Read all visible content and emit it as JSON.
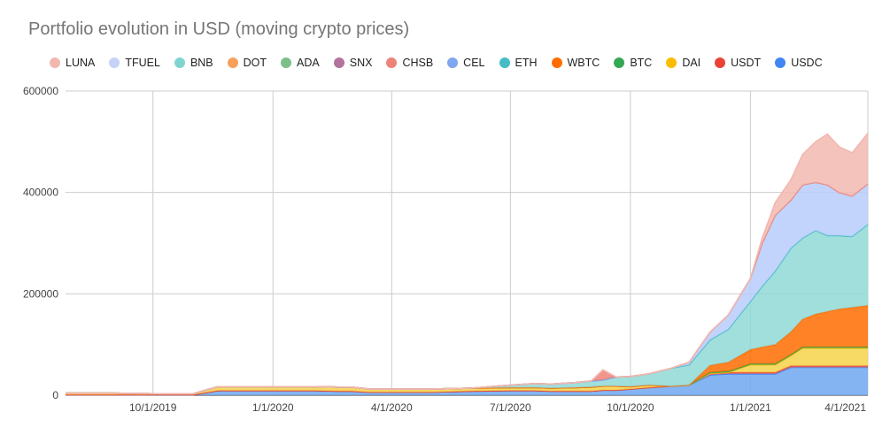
{
  "chart_data": {
    "type": "area",
    "stacked": true,
    "title": "Portfolio evolution in USD (moving crypto prices)",
    "xlabel": "",
    "ylabel": "",
    "ylim": [
      0,
      600000
    ],
    "y_ticks": [
      "600000",
      "400000",
      "200000",
      "0"
    ],
    "x_ticks": [
      "10/1/2019",
      "1/1/2020",
      "4/1/2020",
      "7/1/2020",
      "10/1/2020",
      "1/1/2021",
      "4/1/2021"
    ],
    "x_range": [
      "2019-07-26",
      "2021-04-01"
    ],
    "grid": true,
    "legend_position": "top",
    "x": [
      "2019-07-26",
      "2019-09-01",
      "2019-10-01",
      "2019-11-01",
      "2019-11-20",
      "2019-12-01",
      "2020-01-01",
      "2020-02-01",
      "2020-02-20",
      "2020-03-01",
      "2020-03-15",
      "2020-04-01",
      "2020-05-01",
      "2020-06-01",
      "2020-07-01",
      "2020-07-20",
      "2020-08-01",
      "2020-08-20",
      "2020-09-01",
      "2020-09-10",
      "2020-09-20",
      "2020-10-01",
      "2020-10-15",
      "2020-11-01",
      "2020-11-15",
      "2020-12-01",
      "2020-12-15",
      "2021-01-01",
      "2021-01-10",
      "2021-01-20",
      "2021-02-01",
      "2021-02-10",
      "2021-02-20",
      "2021-03-01",
      "2021-03-10",
      "2021-03-20",
      "2021-04-01"
    ],
    "series": [
      {
        "name": "USDC",
        "color": "#6fa8f0",
        "values": [
          1000,
          1000,
          1000,
          1000,
          9000,
          9000,
          9000,
          9000,
          8000,
          8000,
          6000,
          6000,
          6000,
          8000,
          9000,
          9000,
          8000,
          8000,
          8000,
          10000,
          10000,
          12000,
          15000,
          18000,
          20000,
          40000,
          42000,
          42000,
          42000,
          42000,
          55000,
          55000,
          55000,
          55000,
          55000,
          55000,
          55000
        ]
      },
      {
        "name": "USDT",
        "color": "#e06666",
        "values": [
          0,
          0,
          0,
          0,
          0,
          0,
          0,
          0,
          0,
          0,
          0,
          0,
          0,
          0,
          0,
          0,
          0,
          0,
          0,
          0,
          0,
          0,
          0,
          0,
          0,
          3000,
          3000,
          3000,
          3000,
          3000,
          3000,
          3000,
          3000,
          3000,
          3000,
          3000,
          3000
        ]
      },
      {
        "name": "DAI",
        "color": "#f6d24a",
        "values": [
          3000,
          3000,
          2000,
          2000,
          8000,
          8000,
          8000,
          8000,
          8000,
          8000,
          6000,
          6000,
          6000,
          6000,
          6000,
          6000,
          6000,
          7000,
          8000,
          8000,
          8000,
          5000,
          5000,
          0,
          0,
          0,
          0,
          15000,
          15000,
          15000,
          20000,
          35000,
          35000,
          35000,
          35000,
          35000,
          35000
        ]
      },
      {
        "name": "BTC",
        "color": "#4caf50",
        "values": [
          0,
          0,
          0,
          0,
          0,
          0,
          0,
          0,
          0,
          0,
          0,
          0,
          0,
          0,
          0,
          0,
          0,
          0,
          0,
          0,
          0,
          0,
          0,
          0,
          0,
          2000,
          2000,
          2000,
          2000,
          2000,
          2000,
          2000,
          2000,
          2000,
          2000,
          2000,
          2000
        ]
      },
      {
        "name": "WBTC",
        "color": "#ff6d00",
        "values": [
          0,
          0,
          0,
          0,
          0,
          0,
          0,
          0,
          0,
          0,
          0,
          0,
          0,
          0,
          0,
          0,
          0,
          0,
          0,
          0,
          0,
          0,
          0,
          0,
          0,
          14000,
          18000,
          28000,
          33000,
          38000,
          45000,
          55000,
          65000,
          70000,
          75000,
          78000,
          82000
        ]
      },
      {
        "name": "ETH",
        "color": "#8fd9d6",
        "values": [
          0,
          0,
          0,
          0,
          0,
          0,
          0,
          0,
          0,
          0,
          0,
          0,
          0,
          0,
          5000,
          8000,
          8000,
          10000,
          12000,
          12000,
          18000,
          20000,
          22000,
          35000,
          40000,
          50000,
          65000,
          95000,
          120000,
          145000,
          165000,
          160000,
          165000,
          150000,
          145000,
          140000,
          160000
        ]
      },
      {
        "name": "CEL",
        "color": "#b7cdfb",
        "values": [
          0,
          0,
          0,
          0,
          0,
          0,
          0,
          0,
          0,
          0,
          0,
          0,
          0,
          0,
          0,
          0,
          0,
          0,
          0,
          0,
          0,
          0,
          0,
          0,
          5000,
          15000,
          28000,
          45000,
          85000,
          110000,
          95000,
          105000,
          95000,
          100000,
          85000,
          80000,
          80000
        ]
      },
      {
        "name": "CHSB",
        "color": "#ee8379",
        "values": [
          0,
          0,
          0,
          0,
          0,
          0,
          0,
          0,
          0,
          0,
          0,
          0,
          0,
          0,
          0,
          0,
          0,
          0,
          0,
          20000,
          0,
          0,
          0,
          0,
          0,
          0,
          0,
          0,
          0,
          0,
          0,
          0,
          0,
          0,
          0,
          0,
          0
        ]
      },
      {
        "name": "SNX",
        "color": "#b3739c",
        "values": [
          0,
          0,
          0,
          0,
          0,
          0,
          0,
          0,
          0,
          0,
          0,
          0,
          0,
          0,
          0,
          0,
          0,
          0,
          0,
          0,
          0,
          0,
          0,
          0,
          0,
          0,
          0,
          0,
          0,
          0,
          0,
          0,
          0,
          0,
          0,
          0,
          0
        ]
      },
      {
        "name": "ADA",
        "color": "#7dbf88",
        "values": [
          0,
          0,
          0,
          0,
          0,
          0,
          0,
          0,
          0,
          0,
          0,
          0,
          0,
          0,
          0,
          0,
          0,
          0,
          0,
          0,
          0,
          0,
          0,
          0,
          0,
          0,
          0,
          0,
          0,
          0,
          0,
          0,
          0,
          0,
          0,
          0,
          0
        ]
      },
      {
        "name": "DOT",
        "color": "#f7a05c",
        "values": [
          0,
          0,
          0,
          0,
          0,
          0,
          0,
          0,
          0,
          0,
          0,
          0,
          0,
          0,
          0,
          0,
          0,
          0,
          0,
          0,
          0,
          0,
          0,
          0,
          0,
          0,
          0,
          0,
          0,
          0,
          0,
          0,
          0,
          0,
          0,
          0,
          0
        ]
      },
      {
        "name": "BNB",
        "color": "#80d4cf",
        "values": [
          0,
          0,
          0,
          0,
          0,
          0,
          0,
          0,
          0,
          0,
          0,
          0,
          0,
          0,
          0,
          0,
          0,
          0,
          0,
          0,
          0,
          0,
          0,
          0,
          0,
          0,
          0,
          0,
          0,
          0,
          0,
          0,
          0,
          0,
          0,
          0,
          0
        ]
      },
      {
        "name": "TFUEL",
        "color": "#c6d3f7",
        "values": [
          0,
          0,
          0,
          0,
          0,
          0,
          0,
          0,
          0,
          0,
          0,
          0,
          0,
          0,
          0,
          0,
          0,
          0,
          0,
          0,
          0,
          0,
          0,
          0,
          0,
          0,
          0,
          0,
          0,
          0,
          0,
          0,
          0,
          0,
          0,
          0,
          0
        ]
      },
      {
        "name": "LUNA",
        "color": "#f2b8b0",
        "values": [
          0,
          0,
          0,
          0,
          0,
          0,
          0,
          0,
          0,
          0,
          0,
          0,
          0,
          0,
          0,
          0,
          0,
          0,
          0,
          0,
          0,
          0,
          0,
          0,
          0,
          0,
          0,
          0,
          10000,
          25000,
          40000,
          60000,
          80000,
          100000,
          90000,
          85000,
          100000
        ]
      }
    ],
    "legend": [
      {
        "name": "LUNA",
        "color": "#f2b8b0"
      },
      {
        "name": "TFUEL",
        "color": "#c6d3f7"
      },
      {
        "name": "BNB",
        "color": "#80d4cf"
      },
      {
        "name": "DOT",
        "color": "#f7a05c"
      },
      {
        "name": "ADA",
        "color": "#7dbf88"
      },
      {
        "name": "SNX",
        "color": "#b3739c"
      },
      {
        "name": "CHSB",
        "color": "#ee8379"
      },
      {
        "name": "CEL",
        "color": "#7fa6ee"
      },
      {
        "name": "ETH",
        "color": "#46bdc6"
      },
      {
        "name": "WBTC",
        "color": "#ff6d00"
      },
      {
        "name": "BTC",
        "color": "#34a853"
      },
      {
        "name": "DAI",
        "color": "#fbbc04"
      },
      {
        "name": "USDT",
        "color": "#ea4335"
      },
      {
        "name": "USDC",
        "color": "#4285f4"
      }
    ]
  }
}
